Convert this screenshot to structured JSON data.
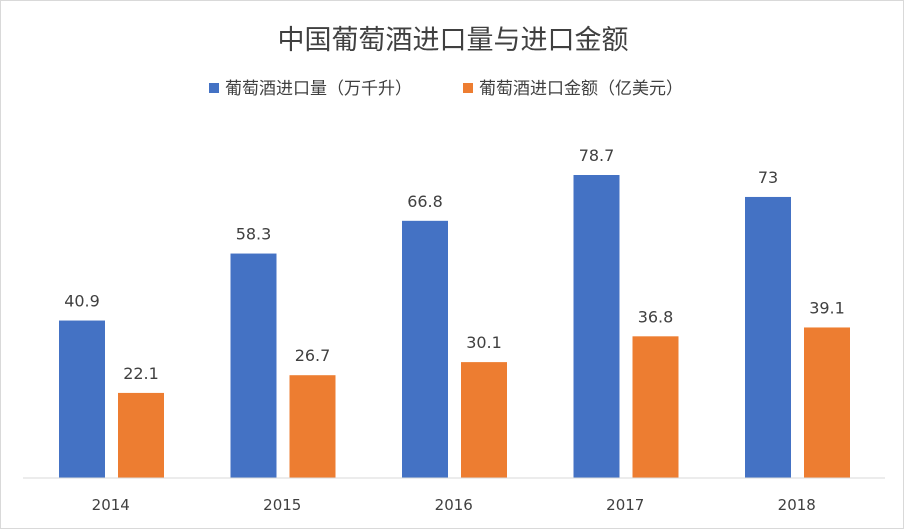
{
  "chart_data": {
    "type": "bar",
    "title": "中国葡萄酒进口量与进口金额",
    "categories": [
      "2014",
      "2015",
      "2016",
      "2017",
      "2018"
    ],
    "series": [
      {
        "name": "葡萄酒进口量（万千升）",
        "values": [
          40.9,
          58.3,
          66.8,
          78.7,
          73
        ],
        "labels": [
          "40.9",
          "58.3",
          "66.8",
          "78.7",
          "73"
        ],
        "color": "#4472c4"
      },
      {
        "name": "葡萄酒进口金额（亿美元）",
        "values": [
          22.1,
          26.7,
          30.1,
          36.8,
          39.1
        ],
        "labels": [
          "22.1",
          "26.7",
          "30.1",
          "36.8",
          "39.1"
        ],
        "color": "#ed7d31"
      }
    ],
    "ylim": [
      0,
      100
    ],
    "legend_position": "top",
    "grid": false
  }
}
